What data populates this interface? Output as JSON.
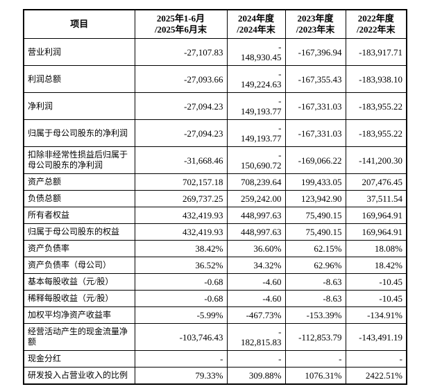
{
  "page": {
    "background_color": "#ffffff",
    "text_color": "#000000",
    "border_color": "#000000"
  },
  "table": {
    "header": {
      "item_label": "项目",
      "period_labels": [
        "2025年1-6月\n/2025年6月末",
        "2024年度\n/2024年末",
        "2023年度\n/2023年末",
        "2022年度\n/2022年末"
      ]
    },
    "rows": [
      {
        "item": "营业利润",
        "values": [
          "-27,107.83",
          "-\n148,930.45",
          "-167,396.94",
          "-183,917.71"
        ]
      },
      {
        "item": "利润总额",
        "values": [
          "-27,093.66",
          "-\n149,224.63",
          "-167,355.43",
          "-183,938.10"
        ]
      },
      {
        "item": "净利润",
        "values": [
          "-27,094.23",
          "-\n149,193.77",
          "-167,331.03",
          "-183,955.22"
        ]
      },
      {
        "item": "归属于母公司股东的净利润",
        "values": [
          "-27,094.23",
          "-\n149,193.77",
          "-167,331.03",
          "-183,955.22"
        ]
      },
      {
        "item": "扣除非经常性损益后归属于母公司股东的净利润",
        "values": [
          "-31,668.46",
          "-\n150,690.72",
          "-169,066.22",
          "-141,200.30"
        ]
      },
      {
        "item": "资产总额",
        "values": [
          "702,157.18",
          "708,239.64",
          "199,433.05",
          "207,476.45"
        ]
      },
      {
        "item": "负债总额",
        "values": [
          "269,737.25",
          "259,242.00",
          "123,942.90",
          "37,511.54"
        ]
      },
      {
        "item": "所有者权益",
        "values": [
          "432,419.93",
          "448,997.63",
          "75,490.15",
          "169,964.91"
        ]
      },
      {
        "item": "归属于母公司股东的权益",
        "values": [
          "432,419.93",
          "448,997.63",
          "75,490.15",
          "169,964.91"
        ]
      },
      {
        "item": "资产负债率",
        "values": [
          "38.42%",
          "36.60%",
          "62.15%",
          "18.08%"
        ]
      },
      {
        "item": "资产负债率（母公司）",
        "values": [
          "36.52%",
          "34.32%",
          "62.96%",
          "18.42%"
        ]
      },
      {
        "item": "基本每股收益（元/股）",
        "values": [
          "-0.68",
          "-4.60",
          "-8.63",
          "-10.45"
        ]
      },
      {
        "item": "稀释每股收益（元/股）",
        "values": [
          "-0.68",
          "-4.60",
          "-8.63",
          "-10.45"
        ]
      },
      {
        "item": "加权平均净资产收益率",
        "values": [
          "-5.99%",
          "-467.73%",
          "-153.39%",
          "-134.91%"
        ]
      },
      {
        "item": "经营活动产生的现金流量净额",
        "values": [
          "-103,746.43",
          "-\n182,815.83",
          "-112,853.79",
          "-143,491.19"
        ]
      },
      {
        "item": "现金分红",
        "values": [
          "-",
          "-",
          "-",
          "-"
        ]
      },
      {
        "item": "研发投入占营业收入的比例",
        "values": [
          "79.33%",
          "309.88%",
          "1076.31%",
          "2422.51%"
        ]
      }
    ]
  }
}
